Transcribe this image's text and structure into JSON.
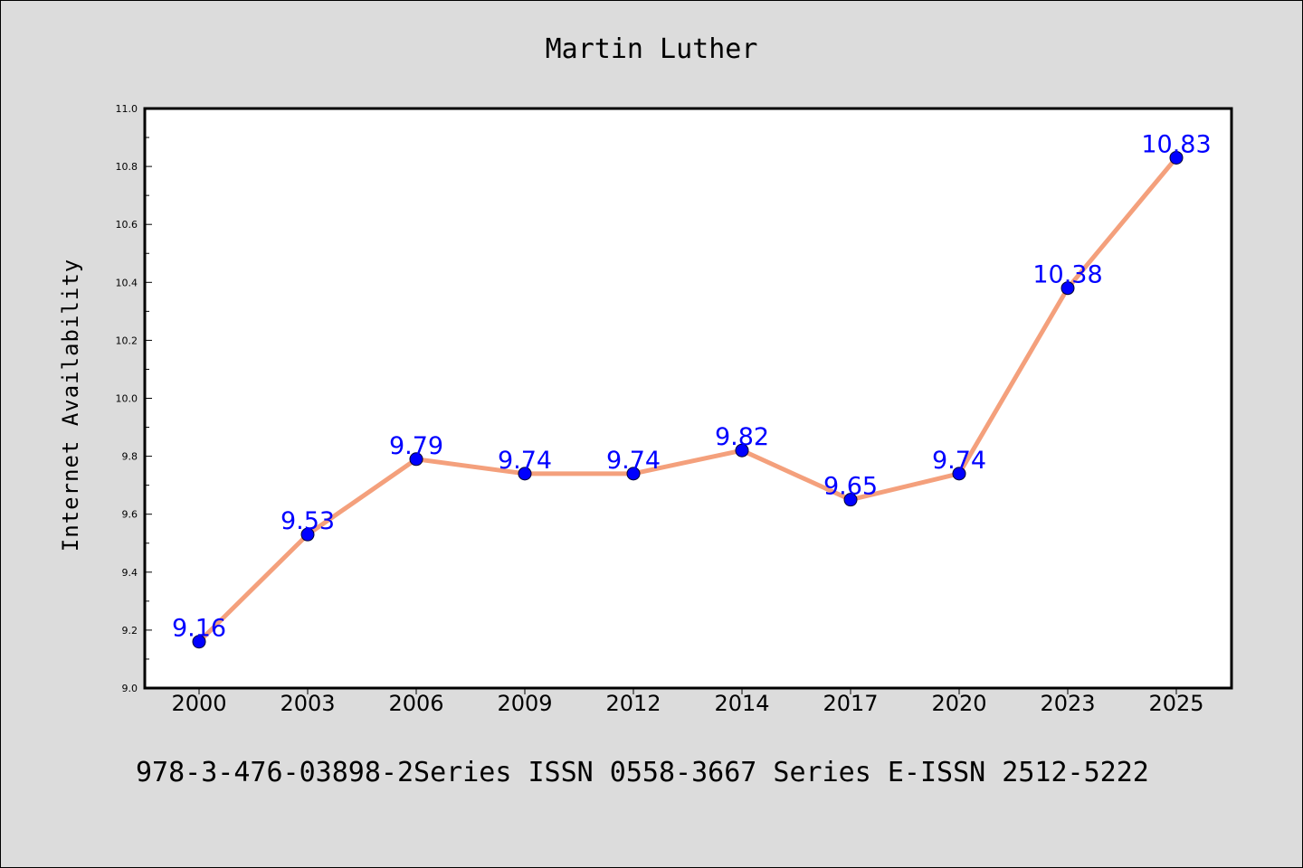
{
  "chart_data": {
    "type": "line",
    "title": "Martin Luther",
    "xlabel": "",
    "ylabel": "Internet Availability",
    "categories": [
      "2000",
      "2003",
      "2006",
      "2009",
      "2012",
      "2014",
      "2017",
      "2020",
      "2023",
      "2025"
    ],
    "values": [
      9.16,
      9.53,
      9.79,
      9.74,
      9.74,
      9.82,
      9.65,
      9.74,
      10.38,
      10.83
    ],
    "data_labels": [
      "9.16",
      "9.53",
      "9.79",
      "9.74",
      "9.74",
      "9.82",
      "9.65",
      "9.74",
      "10.38",
      "10.83"
    ],
    "ylim": [
      9.0,
      11.0
    ],
    "yticks": [
      "9.0",
      "9.2",
      "9.4",
      "9.6",
      "9.8",
      "10.0",
      "10.2",
      "10.4",
      "10.6",
      "10.8",
      "11.0"
    ],
    "grid": false,
    "line_color": "#f4a07c",
    "marker_color": "#0000ff",
    "label_color": "#0000ff",
    "background_color": "#dcdcdc",
    "plot_background": "#ffffff"
  },
  "footer": {
    "text": "978-3-476-03898-2Series ISSN 0558-3667 Series E-ISSN 2512-5222"
  }
}
